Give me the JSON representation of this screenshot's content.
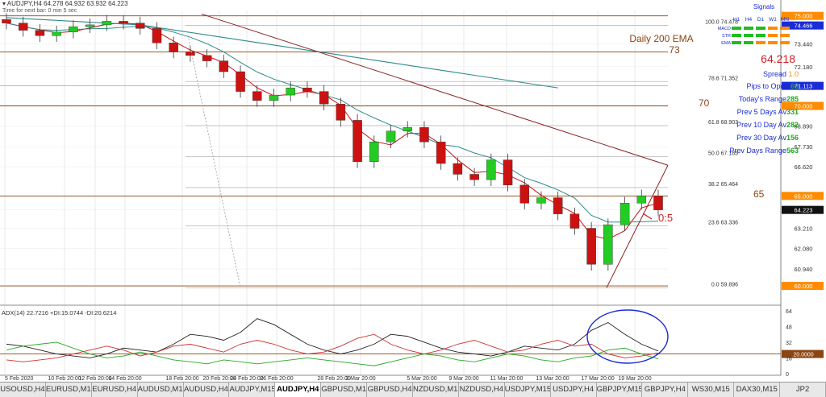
{
  "header": {
    "line1": "▾ AUDJPY,H4  64.278 64.932 63.932 64.223",
    "line2": "Time for next bar: 0 min 5 sec"
  },
  "signals": {
    "title": "Signals",
    "timeframes": [
      "H1",
      "H4",
      "D1",
      "W1",
      "MN"
    ],
    "rows": [
      "MACD",
      "STR",
      "EMA"
    ],
    "colors": {
      "MACD": [
        "#22bb22",
        "#22bb22",
        "#22bb22",
        "#ff8c00",
        "#ff8c00"
      ],
      "STR": [
        "#22bb22",
        "#22bb22",
        "#22bb22",
        "#ff8c00",
        "#ff8c00"
      ],
      "EMA": [
        "#22bb22",
        "#22bb22",
        "#ff8c00",
        "#ff8c00",
        "#ff8c00"
      ]
    }
  },
  "info": {
    "ema_title": "Daily 200 EMA",
    "ema_value": "73",
    "price": "64.218",
    "spread_label": "Spread ",
    "spread_value": "1.0",
    "rows": [
      {
        "label": "Pips to Open ",
        "value": "60"
      },
      {
        "label": "Today's Range",
        "value": "285"
      },
      {
        "label": "Prev 5 Days Av",
        "value": "331"
      },
      {
        "label": "Prev 10 Day Av",
        "value": "282"
      },
      {
        "label": "Prev 30 Day Av",
        "value": "156"
      },
      {
        "label": "Prev Days Range",
        "value": "563"
      }
    ]
  },
  "level_labels": [
    "70",
    "65"
  ],
  "annotation": "0:5",
  "fib": [
    {
      "label": "100.0  74.478",
      "y": 74.478
    },
    {
      "label": "78.6  71.352",
      "y": 71.352
    },
    {
      "label": "61.8  68.903",
      "y": 68.903
    },
    {
      "label": "50.0  67.183",
      "y": 67.183
    },
    {
      "label": "38.2  65.464",
      "y": 65.464
    },
    {
      "label": "23.6  63.336",
      "y": 63.336
    },
    {
      "label": "0.0  59.896",
      "y": 59.896
    }
  ],
  "adx_label": "ADX(14) 22.7216 +DI:15.0744 -DI:20.6214",
  "chart_data": {
    "type": "line",
    "ylim": [
      59.6,
      75.3
    ],
    "y_ticks": [
      "75.000",
      "74.466",
      "73.440",
      "72.180",
      "71.113",
      "70.000",
      "68.890",
      "67.730",
      "66.620",
      "65.000",
      "64.223",
      "63.210",
      "62.080",
      "60.940",
      "60.000"
    ],
    "y_tick_values": [
      75.0,
      74.466,
      73.44,
      72.18,
      71.113,
      70.0,
      68.89,
      67.73,
      66.62,
      65.0,
      64.223,
      63.21,
      62.08,
      60.94,
      60.0
    ],
    "highlighted_ticks": {
      "75.000": "#ff8c00",
      "74.466": "#1a2bd6",
      "71.113": "#1a2bd6",
      "70.000": "#ff8c00",
      "65.000": "#ff8c00",
      "64.223": "#111111",
      "60.000": "#ff8c00"
    },
    "x_ticks": [
      "5 Feb 2020",
      "10 Feb 20:00",
      "12 Feb 20:00",
      "14 Feb 20:00",
      "18 Feb 20:00",
      "20 Feb 20:00",
      "24 Feb 20:00",
      "26 Feb 20:00",
      "28 Feb 20:00",
      "3 Mar 20:00",
      "5 Mar 20:00",
      "9 Mar 20:00",
      "11 Mar 20:00",
      "13 Mar 20:00",
      "17 Mar 20:00",
      "19 Mar 20:00"
    ],
    "horizontal_levels": [
      75.0,
      73.0,
      70.0,
      65.0,
      60.0
    ],
    "series": [
      {
        "values": [
          74.6,
          74.2,
          73.9,
          74.1,
          74.4,
          74.5,
          74.7,
          74.6,
          74.3,
          73.5,
          73.0,
          72.8,
          72.5,
          71.9,
          70.8,
          70.3,
          70.6,
          71.0,
          70.8,
          70.1,
          69.2,
          66.9,
          68.0,
          68.6,
          68.8,
          68.0,
          66.8,
          66.2,
          65.9,
          67.0,
          65.6,
          64.6,
          64.9,
          64.0,
          63.2,
          61.2,
          63.4,
          64.6,
          65.0,
          64.223
        ]
      }
    ],
    "adx": {
      "y_ticks": [
        "64",
        "48",
        "32",
        "20.0000",
        "16",
        "0"
      ],
      "y_tick_values": [
        64,
        48,
        32,
        20,
        16,
        0
      ],
      "ylim": [
        0,
        68
      ],
      "series": [
        {
          "name": "ADX",
          "color": "#222222",
          "values": [
            30,
            28,
            24,
            20,
            18,
            16,
            20,
            26,
            24,
            22,
            30,
            40,
            38,
            34,
            42,
            56,
            50,
            40,
            30,
            24,
            20,
            24,
            30,
            40,
            38,
            32,
            26,
            22,
            20,
            18,
            22,
            28,
            26,
            24,
            30,
            44,
            52,
            40,
            30,
            23
          ]
        },
        {
          "name": "+DI",
          "color": "#22aa22",
          "values": [
            24,
            28,
            30,
            32,
            26,
            20,
            16,
            18,
            22,
            18,
            14,
            12,
            10,
            14,
            12,
            10,
            12,
            14,
            16,
            14,
            12,
            10,
            8,
            12,
            16,
            20,
            18,
            14,
            12,
            16,
            20,
            18,
            14,
            12,
            16,
            18,
            24,
            26,
            20,
            15
          ]
        },
        {
          "name": "-DI",
          "color": "#cc3333",
          "values": [
            14,
            12,
            14,
            16,
            20,
            24,
            28,
            24,
            18,
            22,
            28,
            30,
            26,
            22,
            30,
            34,
            30,
            24,
            20,
            22,
            28,
            36,
            40,
            30,
            24,
            20,
            24,
            30,
            34,
            28,
            22,
            24,
            30,
            34,
            28,
            30,
            20,
            16,
            18,
            21
          ]
        }
      ]
    }
  },
  "tabs": [
    "USOUSD,H4",
    "EURUSD,M15",
    "EURUSD,H4",
    "AUDUSD,M15",
    "AUDUSD,H4",
    "AUDJPY,M15",
    "AUDJPY,H4",
    "GBPUSD,M15",
    "GBPUSD,H4",
    "NZDUSD,M15",
    "NZDUSD,H4",
    "USDJPY,M15",
    "USDJPY,H4",
    "GBPJPY,M15",
    "GBPJPY,H4",
    "WS30,M15",
    "DAX30,M15",
    "JP2"
  ],
  "active_tab": "AUDJPY,H4"
}
